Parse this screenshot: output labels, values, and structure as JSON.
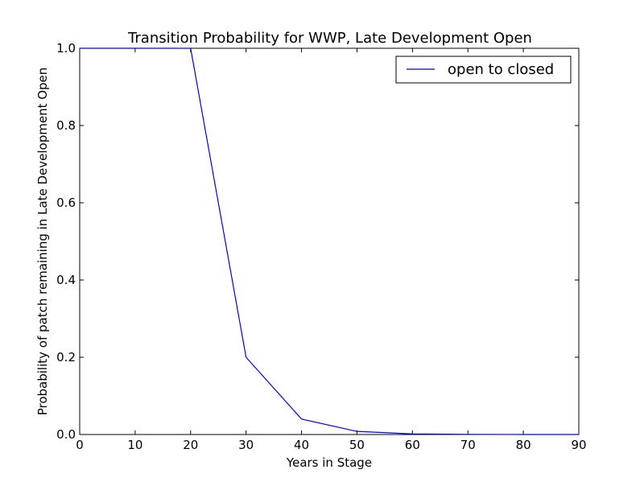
{
  "chart_data": {
    "type": "line",
    "title": "Transition Probability for WWP, Late Development Open",
    "xlabel": "Years in Stage",
    "ylabel": "Probability of patch remaining in Late Development Open",
    "xlim": [
      0,
      90
    ],
    "ylim": [
      0.0,
      1.0
    ],
    "x_ticks": [
      "0",
      "10",
      "20",
      "30",
      "40",
      "50",
      "60",
      "70",
      "80",
      "90"
    ],
    "y_ticks": [
      "0.0",
      "0.2",
      "0.4",
      "0.6",
      "0.8",
      "1.0"
    ],
    "grid": false,
    "legend_position": "top-right",
    "series": [
      {
        "name": "open to closed",
        "color": "#0000ff",
        "x": [
          0,
          10,
          20,
          30,
          40,
          50,
          60,
          70,
          80,
          90
        ],
        "y": [
          1.0,
          1.0,
          1.0,
          0.2,
          0.04,
          0.008,
          0.0015,
          0.0003,
          6e-05,
          1e-05
        ]
      }
    ]
  }
}
